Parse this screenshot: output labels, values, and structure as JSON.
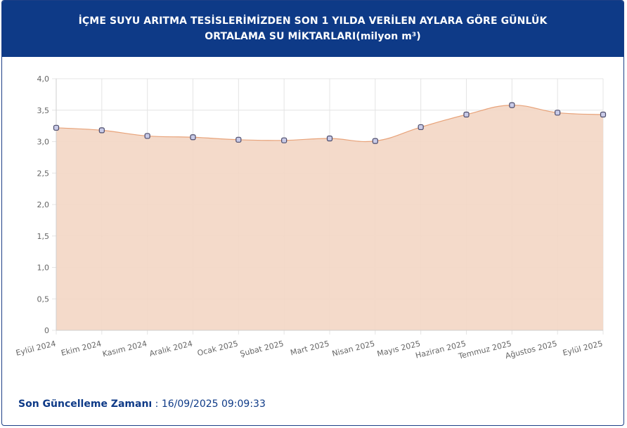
{
  "header": {
    "title": "İÇME SUYU ARITMA TESİSLERİMİZDEN SON 1 YILDA VERİLEN AYLARA GÖRE GÜNLÜK ORTALAMA SU MİKTARLARI(milyon m³)"
  },
  "footer": {
    "label": "Son Güncelleme Zamanı",
    "separator": " : ",
    "value": "16/09/2025 09:09:33"
  },
  "colors": {
    "header_bg": "#0e3a87",
    "area_fill": "#f3d6c4",
    "line": "#e8a37a",
    "point_fill": "#c9cbe8",
    "point_stroke": "#4a4a6a",
    "grid": "#e4e4e4"
  },
  "chart_data": {
    "type": "area",
    "title": "",
    "xlabel": "",
    "ylabel": "",
    "ylim": [
      0,
      4
    ],
    "y_ticks": [
      "0",
      "0,5",
      "1,0",
      "1,5",
      "2,0",
      "2,5",
      "3,0",
      "3,5",
      "4,0"
    ],
    "grid": true,
    "categories": [
      "Eylül 2024",
      "Ekim 2024",
      "Kasım 2024",
      "Aralık 2024",
      "Ocak 2025",
      "Şubat 2025",
      "Mart 2025",
      "Nisan 2025",
      "Mayıs 2025",
      "Haziran 2025",
      "Temmuz 2025",
      "Ağustos 2025",
      "Eylül 2025"
    ],
    "values": [
      3.22,
      3.18,
      3.09,
      3.07,
      3.03,
      3.02,
      3.05,
      3.01,
      3.23,
      3.43,
      3.58,
      3.46,
      3.43
    ]
  }
}
